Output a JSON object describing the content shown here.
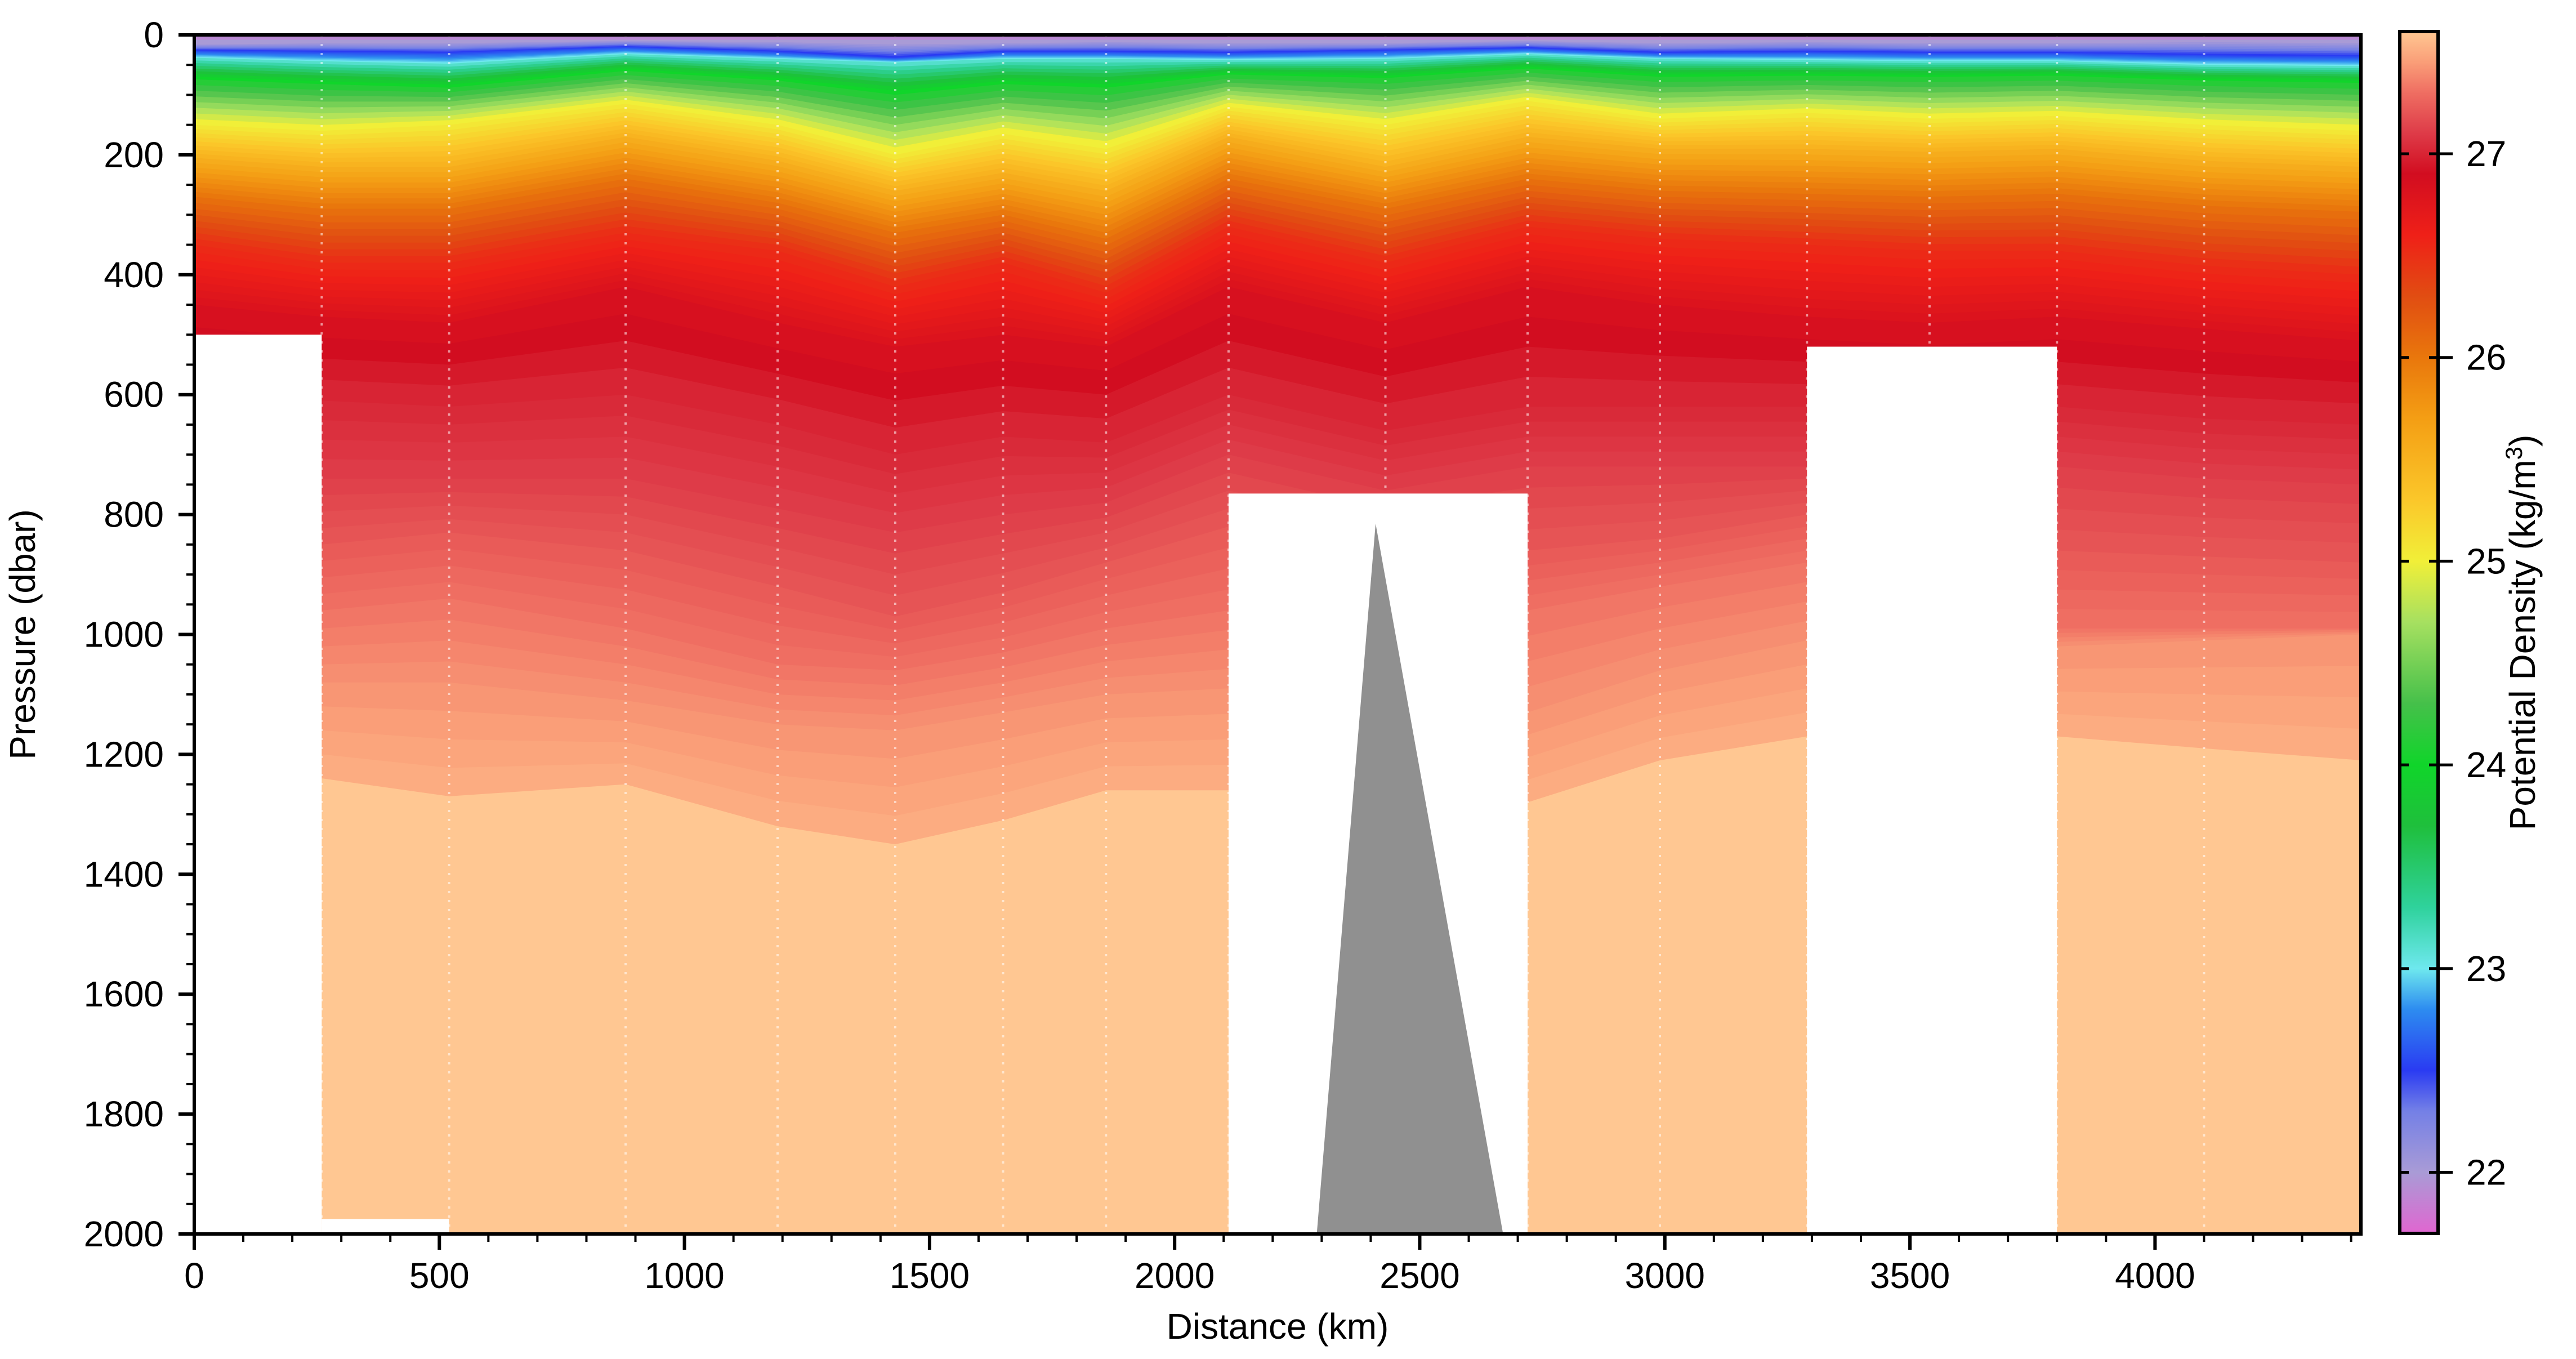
{
  "chart_data": {
    "type": "heatmap",
    "title": "",
    "xlabel": "Distance (km)",
    "ylabel": "Pressure (dbar)",
    "xlim": [
      0,
      4420
    ],
    "ylim": [
      0,
      2000
    ],
    "y_inverted": true,
    "x_ticks": [
      0,
      500,
      1000,
      1500,
      2000,
      2500,
      3000,
      3500,
      4000
    ],
    "y_ticks": [
      0,
      200,
      400,
      600,
      800,
      1000,
      1200,
      1400,
      1600,
      1800,
      2000
    ],
    "colorbar": {
      "label": "Potential Density (kg/m³)",
      "label_prefix": "Potential Density (kg/m",
      "label_sup": "3",
      "label_suffix": ")",
      "range": [
        21.7,
        27.6
      ],
      "ticks": [
        22,
        23,
        24,
        25,
        26,
        27
      ],
      "colors": [
        {
          "v": 21.7,
          "c": "#e066d0"
        },
        {
          "v": 22.0,
          "c": "#a99bd6"
        },
        {
          "v": 22.3,
          "c": "#7480e6"
        },
        {
          "v": 22.5,
          "c": "#2a3bf2"
        },
        {
          "v": 22.8,
          "c": "#2d8cf0"
        },
        {
          "v": 23.0,
          "c": "#6ee8ee"
        },
        {
          "v": 23.3,
          "c": "#2fd29c"
        },
        {
          "v": 23.7,
          "c": "#1fbf3c"
        },
        {
          "v": 24.0,
          "c": "#10d52a"
        },
        {
          "v": 24.3,
          "c": "#45c04a"
        },
        {
          "v": 24.7,
          "c": "#a6e060"
        },
        {
          "v": 25.0,
          "c": "#f1ef38"
        },
        {
          "v": 25.3,
          "c": "#fbc72a"
        },
        {
          "v": 25.7,
          "c": "#f49e14"
        },
        {
          "v": 26.0,
          "c": "#e9770c"
        },
        {
          "v": 26.3,
          "c": "#e14d12"
        },
        {
          "v": 26.6,
          "c": "#ef2018"
        },
        {
          "v": 26.9,
          "c": "#d20d20"
        },
        {
          "v": 27.1,
          "c": "#de3b48"
        },
        {
          "v": 27.3,
          "c": "#ef6e62"
        },
        {
          "v": 27.45,
          "c": "#fa9e78"
        },
        {
          "v": 27.6,
          "c": "#ffc792"
        }
      ]
    },
    "x_stations": [
      0,
      260,
      520,
      880,
      1190,
      1430,
      1650,
      1860,
      2110,
      2430,
      2720,
      2990,
      3290,
      3540,
      3800,
      4100,
      4420
    ],
    "isopycnal_depths_dbar": [
      {
        "sigma": 22.0,
        "depth": [
          16,
          14,
          14,
          10,
          12,
          16,
          14,
          12,
          14,
          14,
          10,
          14,
          12,
          14,
          14,
          12,
          14
        ]
      },
      {
        "sigma": 22.5,
        "depth": [
          26,
          28,
          30,
          20,
          28,
          38,
          28,
          28,
          30,
          26,
          22,
          30,
          28,
          30,
          30,
          34,
          36
        ]
      },
      {
        "sigma": 23.0,
        "depth": [
          38,
          44,
          48,
          32,
          40,
          46,
          40,
          40,
          42,
          40,
          32,
          40,
          42,
          44,
          44,
          50,
          52
        ]
      },
      {
        "sigma": 24.0,
        "depth": [
          74,
          82,
          88,
          60,
          76,
          100,
          82,
          88,
          66,
          72,
          56,
          70,
          68,
          70,
          68,
          76,
          80
        ]
      },
      {
        "sigma": 25.0,
        "depth": [
          150,
          160,
          150,
          115,
          150,
          200,
          165,
          190,
          120,
          150,
          110,
          140,
          130,
          140,
          135,
          150,
          160
        ]
      },
      {
        "sigma": 25.5,
        "depth": [
          205,
          220,
          220,
          170,
          210,
          260,
          230,
          260,
          170,
          220,
          170,
          190,
          190,
          195,
          190,
          210,
          220
        ]
      },
      {
        "sigma": 26.0,
        "depth": [
          270,
          290,
          290,
          240,
          280,
          330,
          300,
          340,
          240,
          290,
          240,
          260,
          265,
          270,
          265,
          285,
          295
        ]
      },
      {
        "sigma": 26.5,
        "depth": [
          350,
          380,
          380,
          330,
          360,
          420,
          380,
          430,
          320,
          380,
          320,
          340,
          350,
          360,
          360,
          385,
          400
        ]
      },
      {
        "sigma": 26.8,
        "depth": [
          450,
          470,
          480,
          420,
          480,
          520,
          500,
          520,
          420,
          480,
          420,
          450,
          470,
          480,
          470,
          490,
          510
        ]
      },
      {
        "sigma": 27.0,
        "depth": [
          600,
          610,
          620,
          600,
          650,
          700,
          670,
          680,
          600,
          660,
          620,
          620,
          620,
          630,
          620,
          640,
          650
        ]
      },
      {
        "sigma": 27.1,
        "depth": [
          720,
          740,
          740,
          740,
          790,
          830,
          800,
          780,
          700,
          760,
          720,
          720,
          720,
          730,
          720,
          740,
          750
        ]
      },
      {
        "sigma": 27.2,
        "depth": [
          830,
          850,
          830,
          860,
          920,
          970,
          930,
          880,
          820,
          880,
          860,
          840,
          800,
          820,
          860,
          870,
          880
        ]
      },
      {
        "sigma": 27.3,
        "depth": [
          940,
          960,
          940,
          990,
          1050,
          1060,
          1030,
          990,
          960,
          1000,
          960,
          920,
          880,
          920,
          990,
          990,
          990
        ]
      },
      {
        "sigma": 27.4,
        "depth": [
          1070,
          1080,
          1080,
          1110,
          1150,
          1160,
          1130,
          1100,
          1090,
          1110,
          1130,
          1060,
          1010,
          1020,
          1020,
          1010,
          1000
        ]
      },
      {
        "sigma": 27.5,
        "depth": [
          1230,
          1240,
          1270,
          1250,
          1320,
          1350,
          1310,
          1260,
          1260,
          1280,
          1280,
          1210,
          1170,
          1170,
          1170,
          1190,
          1210
        ]
      }
    ],
    "data_gaps": [
      {
        "x": [
          0,
          260
        ],
        "from_depth": 500,
        "to_depth": 2000
      },
      {
        "x": [
          260,
          520
        ],
        "from_depth": 1975,
        "to_depth": 2000
      },
      {
        "x": [
          2110,
          2720
        ],
        "from_depth": 765,
        "to_depth": 2000
      },
      {
        "x": [
          3290,
          3800
        ],
        "from_depth": 520,
        "to_depth": 2000
      }
    ],
    "seafloor": {
      "color": "#909090",
      "points": [
        [
          2290,
          2000
        ],
        [
          2410,
          815
        ],
        [
          2670,
          2000
        ]
      ]
    }
  }
}
